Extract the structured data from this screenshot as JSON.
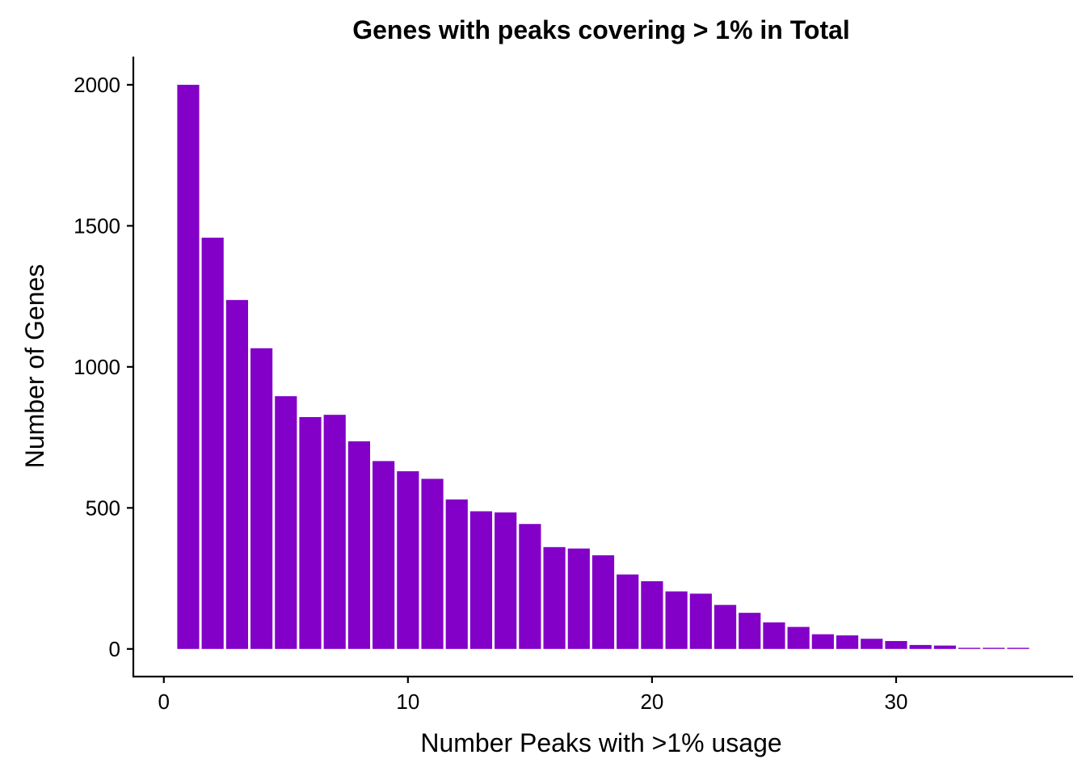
{
  "chart_data": {
    "type": "bar",
    "title": "Genes with peaks covering > 1% in Total",
    "xlabel": "Number Peaks with >1% usage",
    "ylabel": "Number of Genes",
    "x": [
      1,
      2,
      3,
      4,
      5,
      6,
      7,
      8,
      9,
      10,
      11,
      12,
      13,
      14,
      15,
      16,
      17,
      18,
      19,
      20,
      21,
      22,
      23,
      24,
      25,
      26,
      27,
      28,
      29,
      30,
      31,
      32,
      33,
      34,
      35
    ],
    "values": [
      2000,
      1458,
      1237,
      1066,
      896,
      822,
      830,
      736,
      666,
      630,
      603,
      530,
      488,
      484,
      443,
      361,
      356,
      332,
      264,
      240,
      204,
      196,
      156,
      128,
      94,
      78,
      52,
      48,
      36,
      28,
      14,
      12,
      4,
      4,
      4
    ],
    "xlim": [
      -1.25,
      37.25
    ],
    "ylim": [
      -98,
      2100
    ],
    "xticks": [
      0,
      10,
      20,
      30
    ],
    "yticks": [
      0,
      500,
      1000,
      1500,
      2000
    ],
    "bar_color": "#8200C8",
    "grid": false,
    "legend": "none"
  }
}
